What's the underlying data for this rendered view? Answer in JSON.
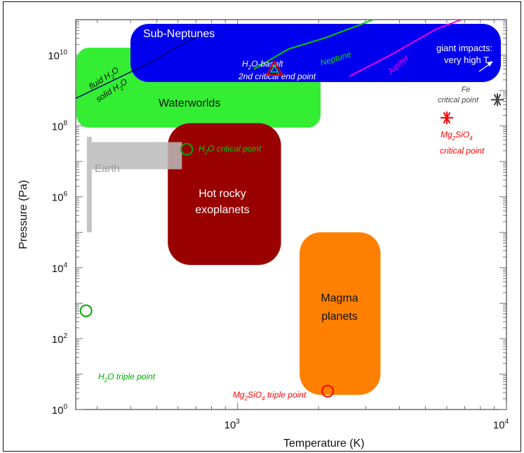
{
  "chart_data": {
    "type": "scatter",
    "title": "",
    "xlabel": "Temperature (K)",
    "ylabel": "Pressure (Pa)",
    "xscale": "log",
    "yscale": "log",
    "xlim": [
      250,
      10000
    ],
    "ylim": [
      1,
      100000000000
    ],
    "x_tick_labels": [
      {
        "base": "10",
        "exp": "3"
      },
      {
        "base": "10",
        "exp": "4"
      }
    ],
    "y_tick_labels": [
      {
        "base": "10",
        "exp": "0"
      },
      {
        "base": "10",
        "exp": "2"
      },
      {
        "base": "10",
        "exp": "4"
      },
      {
        "base": "10",
        "exp": "6"
      },
      {
        "base": "10",
        "exp": "8"
      },
      {
        "base": "10",
        "exp": "10"
      }
    ],
    "regions": [
      {
        "label": "Sub-Neptunes",
        "T": [
          420,
          11000
        ],
        "P": [
          2500000000.0,
          600000000000.0
        ],
        "color": "#0000ee"
      },
      {
        "label": "Waterworlds",
        "T": [
          250,
          2000
        ],
        "P": [
          130000000.0,
          20000000000.0
        ],
        "color": "#33ee33"
      },
      {
        "label": "Hot rocky exoplanets",
        "T": [
          550,
          1450
        ],
        "P": [
          12000.0,
          120000000.0
        ],
        "color": "#990000"
      },
      {
        "label": "Magma planets",
        "T": [
          1700,
          3400
        ],
        "P": [
          2.6,
          100000.0
        ],
        "color": "#ff8000"
      }
    ],
    "earth": {
      "label": "Earth",
      "T": [
        275,
        700
      ],
      "P": [
        100000.0,
        50000000.0
      ],
      "color": "#bbbbbb"
    },
    "curves": [
      {
        "name": "Neptune",
        "color": "#00cc00",
        "T": [
          1150,
          1550,
          2100,
          3200
        ],
        "P": [
          4000000000.0,
          15000000000.0,
          30000000000.0,
          200000000000.0
        ]
      },
      {
        "name": "Jupiter",
        "color": "#ee00ee",
        "T": [
          2600,
          3700,
          5500,
          6800
        ],
        "P": [
          2500000000.0,
          10000000000.0,
          55000000000.0,
          200000000000.0
        ]
      },
      {
        "name": "fluid/solid H2O",
        "color": "#000066",
        "T": [
          250,
          470,
          800
        ],
        "P": [
          600000000.0,
          6000000000.0,
          60000000000.0
        ]
      }
    ],
    "points": [
      {
        "label": "H2O critical point",
        "T": 647,
        "P": 22000000.0,
        "marker": "circle",
        "color": "#00aa00"
      },
      {
        "label": "H2O triple point",
        "T": 273,
        "P": 611,
        "marker": "circle",
        "color": "#00aa00"
      },
      {
        "label": "Mg2SiO4 triple point",
        "T": 2163,
        "P": 3.3,
        "marker": "circle",
        "color": "#ff0000"
      },
      {
        "label": "Mg2SiO4 critical point",
        "T": 6000,
        "P": 170000000.0,
        "marker": "asterisk",
        "color": "#ff0000"
      },
      {
        "label": "Fe critical point",
        "T": 9250,
        "P": 550000000.0,
        "marker": "asterisk",
        "color": "#444444"
      },
      {
        "label": "H2O-basalt 2nd critical end point",
        "T": 1370,
        "P": 4000000000.0,
        "marker": "triangle",
        "color": "#cc0000"
      }
    ],
    "annotations": [
      {
        "text": "giant impacts: very high T",
        "T": 8000,
        "P": 4000000000.0,
        "color": "#ffffff"
      }
    ]
  },
  "labels": {
    "sub_neptunes": "Sub-Neptunes",
    "waterworlds": "Waterworlds",
    "hot_rocky_1": "Hot rocky",
    "hot_rocky_2": "exoplanets",
    "magma_1": "Magma",
    "magma_2": "planets",
    "earth": "Earth",
    "neptune": "Neptune",
    "jupiter": "Jupiter",
    "fluid_h2o": "fluid H",
    "solid_h2o": "solid H",
    "sub2": "2",
    "o": "O",
    "giant_1": "giant impacts:",
    "giant_2": "very high T",
    "fe_1": "Fe",
    "fe_2": "critical point",
    "mg_1a": "Mg",
    "mg_1b": "SiO",
    "mg_sub2": "2",
    "mg_sub4": "4",
    "mg_crit": "critical point",
    "h2o_crit_a": "H",
    "h2o_crit_b": "O critical point",
    "h2o_triple_a": "H",
    "h2o_triple_b": "O triple point",
    "mg_triple_a": "Mg",
    "mg_triple_b": "SiO",
    "mg_triple_c": " triple point",
    "basalt_a": "H",
    "basalt_b": "O-basalt",
    "basalt_c": "2nd critical end point"
  }
}
